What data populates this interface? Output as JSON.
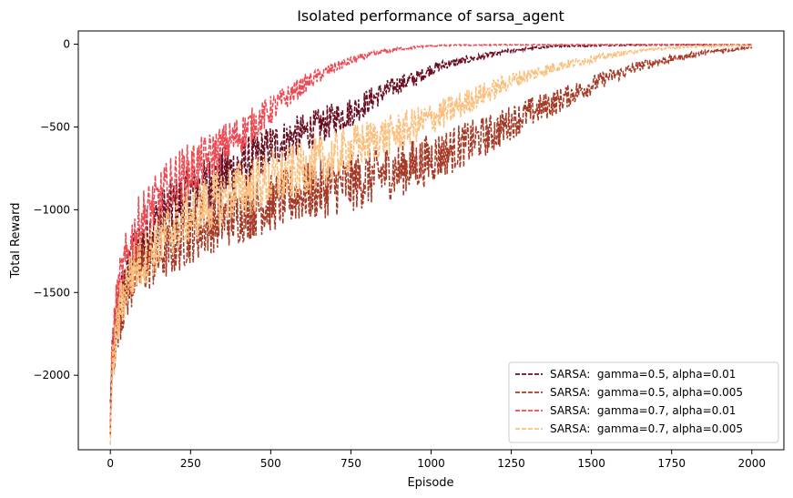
{
  "chart_data": {
    "type": "line",
    "title": "Isolated performance of sarsa_agent",
    "xlabel": "Episode",
    "ylabel": "Total Reward",
    "xlim": [
      -100,
      2100
    ],
    "ylim": [
      -2450,
      80
    ],
    "xticks": [
      0,
      250,
      500,
      750,
      1000,
      1250,
      1500,
      1750,
      2000
    ],
    "yticks": [
      0,
      -500,
      -1000,
      -1500,
      -2000
    ],
    "grid": false,
    "legend_position": "lower right",
    "series": [
      {
        "name": "SARSA:  gamma=0.5, alpha=0.01",
        "color": "#6b0e22",
        "x": [
          0,
          10,
          25,
          50,
          75,
          100,
          150,
          200,
          250,
          300,
          350,
          400,
          450,
          500,
          550,
          600,
          650,
          700,
          750,
          800,
          850,
          900,
          950,
          1000,
          1050,
          1100,
          1150,
          1200,
          1250,
          1300,
          1400,
          1500,
          1600,
          1700,
          1800,
          1900,
          2000
        ],
        "values": [
          -2200,
          -1800,
          -1600,
          -1400,
          -1300,
          -1200,
          -1050,
          -980,
          -900,
          -860,
          -800,
          -740,
          -690,
          -620,
          -580,
          -540,
          -500,
          -450,
          -410,
          -350,
          -290,
          -240,
          -210,
          -150,
          -120,
          -100,
          -80,
          -60,
          -40,
          -25,
          -12,
          -8,
          -5,
          -4,
          -3,
          -3,
          -3
        ]
      },
      {
        "name": "SARSA:  gamma=0.5, alpha=0.005",
        "color": "#a63a26",
        "x": [
          0,
          10,
          25,
          50,
          75,
          100,
          150,
          200,
          250,
          300,
          350,
          400,
          450,
          500,
          550,
          600,
          650,
          700,
          750,
          800,
          850,
          900,
          950,
          1000,
          1050,
          1100,
          1150,
          1200,
          1250,
          1300,
          1350,
          1400,
          1450,
          1500,
          1550,
          1600,
          1650,
          1700,
          1750,
          1800,
          1850,
          1900,
          1950,
          2000
        ],
        "values": [
          -2250,
          -1850,
          -1650,
          -1500,
          -1400,
          -1350,
          -1280,
          -1220,
          -1150,
          -1100,
          -1060,
          -1030,
          -990,
          -960,
          -930,
          -900,
          -880,
          -860,
          -840,
          -810,
          -780,
          -760,
          -730,
          -690,
          -650,
          -610,
          -570,
          -530,
          -470,
          -420,
          -380,
          -340,
          -290,
          -250,
          -200,
          -170,
          -130,
          -110,
          -90,
          -70,
          -50,
          -40,
          -30,
          -20
        ]
      },
      {
        "name": "SARSA:  gamma=0.7, alpha=0.01",
        "color": "#ee4a53",
        "x": [
          0,
          10,
          25,
          50,
          75,
          100,
          150,
          200,
          250,
          300,
          350,
          400,
          450,
          500,
          550,
          600,
          650,
          700,
          750,
          800,
          850,
          900,
          950,
          1000,
          1100,
          1200,
          1300,
          1400,
          1500,
          1600,
          1700,
          1800,
          1900,
          2000
        ],
        "values": [
          -2150,
          -1750,
          -1500,
          -1300,
          -1150,
          -1050,
          -950,
          -830,
          -760,
          -700,
          -620,
          -550,
          -480,
          -400,
          -320,
          -250,
          -190,
          -140,
          -100,
          -70,
          -45,
          -30,
          -18,
          -10,
          -6,
          -4,
          -3,
          -3,
          -3,
          -3,
          -3,
          -3,
          -3,
          -3
        ]
      },
      {
        "name": "SARSA:  gamma=0.7, alpha=0.005",
        "color": "#fcc07e",
        "x": [
          0,
          10,
          25,
          50,
          75,
          100,
          150,
          200,
          250,
          300,
          350,
          400,
          450,
          500,
          550,
          600,
          650,
          700,
          750,
          800,
          850,
          900,
          950,
          1000,
          1050,
          1100,
          1150,
          1200,
          1250,
          1300,
          1350,
          1400,
          1450,
          1500,
          1550,
          1600,
          1650,
          1700,
          1750,
          1800,
          1900,
          2000
        ],
        "values": [
          -2300,
          -1900,
          -1650,
          -1450,
          -1350,
          -1300,
          -1200,
          -1100,
          -1030,
          -970,
          -920,
          -880,
          -850,
          -820,
          -790,
          -760,
          -720,
          -680,
          -630,
          -590,
          -560,
          -530,
          -490,
          -450,
          -410,
          -360,
          -310,
          -270,
          -220,
          -190,
          -160,
          -130,
          -110,
          -90,
          -70,
          -55,
          -40,
          -30,
          -22,
          -15,
          -10,
          -7
        ]
      }
    ]
  }
}
